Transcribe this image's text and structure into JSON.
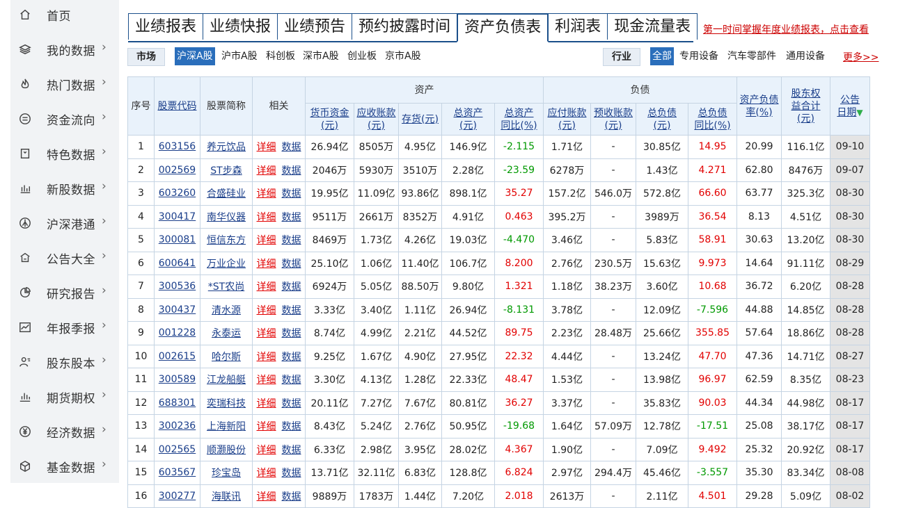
{
  "sidebar": {
    "items": [
      {
        "label": "首页",
        "icon": "home-icon",
        "arrow": ""
      },
      {
        "label": "我的数据",
        "icon": "layers-icon",
        "arrow": "›"
      },
      {
        "label": "热门数据",
        "icon": "fire-icon",
        "arrow": "›"
      },
      {
        "label": "资金流向",
        "icon": "currency-icon",
        "arrow": "›"
      },
      {
        "label": "特色数据",
        "icon": "bookmark-icon",
        "arrow": "›"
      },
      {
        "label": "新股数据",
        "icon": "bar-chart-icon",
        "arrow": "›"
      },
      {
        "label": "沪深港通",
        "icon": "connect-icon",
        "arrow": "›"
      },
      {
        "label": "公告大全",
        "icon": "building-icon",
        "arrow": "›"
      },
      {
        "label": "研究报告",
        "icon": "pie-chart-icon",
        "arrow": "›"
      },
      {
        "label": "年报季报",
        "icon": "line-chart-icon",
        "arrow": "›"
      },
      {
        "label": "股东股本",
        "icon": "user-icon",
        "arrow": "›"
      },
      {
        "label": "期货期权",
        "icon": "candle-chart-icon",
        "arrow": "›"
      },
      {
        "label": "经济数据",
        "icon": "yen-icon",
        "arrow": "›"
      },
      {
        "label": "基金数据",
        "icon": "cube-icon",
        "arrow": "›"
      }
    ]
  },
  "tabs": [
    "业绩报表",
    "业绩快报",
    "业绩预告",
    "预约披露时间",
    "资产负债表",
    "利润表",
    "现金流量表"
  ],
  "active_tab": "资产负债表",
  "promo": "第一时间掌握年度业绩报表，点击查看",
  "market": {
    "label": "市场",
    "options": [
      "沪深A股",
      "沪市A股",
      "科创板",
      "深市A股",
      "创业板",
      "京市A股"
    ],
    "selected": "沪深A股"
  },
  "industry": {
    "label": "行业",
    "options": [
      "全部",
      "专用设备",
      "汽车零部件",
      "通用设备"
    ],
    "selected": "全部",
    "more": "更多>>"
  },
  "table": {
    "group_assets": "资产",
    "group_liabilities": "负债",
    "headers": {
      "seq": "序号",
      "code": "股票代码",
      "name": "股票简称",
      "related": "相关",
      "cash": "货币资金(元)",
      "receivable": "应收账款(元)",
      "inventory": "存货(元)",
      "total_assets": "总资产(元)",
      "total_assets_yoy": "总资产同比(%)",
      "payable": "应付账款(元)",
      "advance": "预收账款(元)",
      "total_liab": "总负债(元)",
      "total_liab_yoy": "总负债同比(%)",
      "debt_ratio": "资产负债率(%)",
      "equity": "股东权益合计(元)",
      "date": "公告日期"
    },
    "link_detail": "详细",
    "link_data": "数据",
    "rows": [
      {
        "seq": "1",
        "code": "603156",
        "name": "养元饮品",
        "cash": "26.94亿",
        "receivable": "8505万",
        "inventory": "4.95亿",
        "total_assets": "146.9亿",
        "total_assets_yoy": "-2.115",
        "payable": "1.71亿",
        "advance": "-",
        "total_liab": "30.85亿",
        "total_liab_yoy": "14.95",
        "debt_ratio": "20.99",
        "equity": "116.1亿",
        "date": "09-10"
      },
      {
        "seq": "2",
        "code": "002569",
        "name": "ST步森",
        "cash": "2046万",
        "receivable": "5930万",
        "inventory": "3510万",
        "total_assets": "2.28亿",
        "total_assets_yoy": "-23.59",
        "payable": "6278万",
        "advance": "-",
        "total_liab": "1.43亿",
        "total_liab_yoy": "4.271",
        "debt_ratio": "62.80",
        "equity": "8476万",
        "date": "09-07"
      },
      {
        "seq": "3",
        "code": "603260",
        "name": "合盛硅业",
        "cash": "19.95亿",
        "receivable": "11.09亿",
        "inventory": "93.86亿",
        "total_assets": "898.1亿",
        "total_assets_yoy": "35.27",
        "payable": "157.2亿",
        "advance": "546.0万",
        "total_liab": "572.8亿",
        "total_liab_yoy": "66.60",
        "debt_ratio": "63.77",
        "equity": "325.3亿",
        "date": "08-30"
      },
      {
        "seq": "4",
        "code": "300417",
        "name": "南华仪器",
        "cash": "9511万",
        "receivable": "2661万",
        "inventory": "8352万",
        "total_assets": "4.91亿",
        "total_assets_yoy": "0.463",
        "payable": "395.2万",
        "advance": "-",
        "total_liab": "3989万",
        "total_liab_yoy": "36.54",
        "debt_ratio": "8.13",
        "equity": "4.51亿",
        "date": "08-30"
      },
      {
        "seq": "5",
        "code": "300081",
        "name": "恒信东方",
        "cash": "8469万",
        "receivable": "1.73亿",
        "inventory": "4.26亿",
        "total_assets": "19.03亿",
        "total_assets_yoy": "-4.470",
        "payable": "3.46亿",
        "advance": "-",
        "total_liab": "5.83亿",
        "total_liab_yoy": "58.91",
        "debt_ratio": "30.63",
        "equity": "13.20亿",
        "date": "08-30"
      },
      {
        "seq": "6",
        "code": "600641",
        "name": "万业企业",
        "cash": "25.10亿",
        "receivable": "1.06亿",
        "inventory": "11.40亿",
        "total_assets": "106.7亿",
        "total_assets_yoy": "8.200",
        "payable": "2.76亿",
        "advance": "230.5万",
        "total_liab": "15.63亿",
        "total_liab_yoy": "9.973",
        "debt_ratio": "14.64",
        "equity": "91.11亿",
        "date": "08-29"
      },
      {
        "seq": "7",
        "code": "300536",
        "name": "*ST农尚",
        "cash": "6924万",
        "receivable": "5.05亿",
        "inventory": "88.50万",
        "total_assets": "9.80亿",
        "total_assets_yoy": "1.321",
        "payable": "1.18亿",
        "advance": "38.23万",
        "total_liab": "3.60亿",
        "total_liab_yoy": "10.68",
        "debt_ratio": "36.72",
        "equity": "6.20亿",
        "date": "08-28"
      },
      {
        "seq": "8",
        "code": "300437",
        "name": "清水源",
        "cash": "3.33亿",
        "receivable": "3.40亿",
        "inventory": "1.11亿",
        "total_assets": "26.94亿",
        "total_assets_yoy": "-8.131",
        "payable": "3.78亿",
        "advance": "-",
        "total_liab": "12.09亿",
        "total_liab_yoy": "-7.596",
        "debt_ratio": "44.88",
        "equity": "14.85亿",
        "date": "08-28"
      },
      {
        "seq": "9",
        "code": "001228",
        "name": "永泰运",
        "cash": "8.74亿",
        "receivable": "4.99亿",
        "inventory": "2.21亿",
        "total_assets": "44.52亿",
        "total_assets_yoy": "89.75",
        "payable": "2.23亿",
        "advance": "28.48万",
        "total_liab": "25.66亿",
        "total_liab_yoy": "355.85",
        "debt_ratio": "57.64",
        "equity": "18.86亿",
        "date": "08-28"
      },
      {
        "seq": "10",
        "code": "002615",
        "name": "哈尔斯",
        "cash": "9.25亿",
        "receivable": "1.67亿",
        "inventory": "4.90亿",
        "total_assets": "27.95亿",
        "total_assets_yoy": "22.32",
        "payable": "4.44亿",
        "advance": "-",
        "total_liab": "13.24亿",
        "total_liab_yoy": "47.70",
        "debt_ratio": "47.36",
        "equity": "14.71亿",
        "date": "08-27"
      },
      {
        "seq": "11",
        "code": "300589",
        "name": "江龙船艇",
        "cash": "3.30亿",
        "receivable": "4.13亿",
        "inventory": "1.28亿",
        "total_assets": "22.33亿",
        "total_assets_yoy": "48.47",
        "payable": "1.53亿",
        "advance": "-",
        "total_liab": "13.98亿",
        "total_liab_yoy": "96.97",
        "debt_ratio": "62.59",
        "equity": "8.35亿",
        "date": "08-23"
      },
      {
        "seq": "12",
        "code": "688301",
        "name": "奕瑞科技",
        "cash": "20.11亿",
        "receivable": "7.27亿",
        "inventory": "7.67亿",
        "total_assets": "80.81亿",
        "total_assets_yoy": "36.27",
        "payable": "3.37亿",
        "advance": "-",
        "total_liab": "35.83亿",
        "total_liab_yoy": "90.03",
        "debt_ratio": "44.34",
        "equity": "44.98亿",
        "date": "08-17"
      },
      {
        "seq": "13",
        "code": "300236",
        "name": "上海新阳",
        "cash": "8.43亿",
        "receivable": "5.24亿",
        "inventory": "2.76亿",
        "total_assets": "50.95亿",
        "total_assets_yoy": "-19.68",
        "payable": "1.64亿",
        "advance": "57.09万",
        "total_liab": "12.78亿",
        "total_liab_yoy": "-17.51",
        "debt_ratio": "25.08",
        "equity": "38.17亿",
        "date": "08-17"
      },
      {
        "seq": "14",
        "code": "002565",
        "name": "顺灏股份",
        "cash": "6.33亿",
        "receivable": "2.98亿",
        "inventory": "3.95亿",
        "total_assets": "28.02亿",
        "total_assets_yoy": "4.367",
        "payable": "1.90亿",
        "advance": "-",
        "total_liab": "7.09亿",
        "total_liab_yoy": "9.492",
        "debt_ratio": "25.32",
        "equity": "20.92亿",
        "date": "08-17"
      },
      {
        "seq": "15",
        "code": "603567",
        "name": "珍宝岛",
        "cash": "13.71亿",
        "receivable": "32.11亿",
        "inventory": "6.83亿",
        "total_assets": "128.8亿",
        "total_assets_yoy": "6.824",
        "payable": "2.97亿",
        "advance": "294.4万",
        "total_liab": "45.46亿",
        "total_liab_yoy": "-3.557",
        "debt_ratio": "35.30",
        "equity": "83.34亿",
        "date": "08-08"
      },
      {
        "seq": "16",
        "code": "300277",
        "name": "海联讯",
        "cash": "9889万",
        "receivable": "1783万",
        "inventory": "1.44亿",
        "total_assets": "7.20亿",
        "total_assets_yoy": "2.018",
        "payable": "2613万",
        "advance": "-",
        "total_liab": "2.11亿",
        "total_liab_yoy": "4.501",
        "debt_ratio": "29.28",
        "equity": "5.09亿",
        "date": "08-02"
      }
    ]
  },
  "colors": {
    "positive": "#e20000",
    "negative": "#009900",
    "link": "#1a3e8a",
    "accent": "#2a6ebb"
  }
}
